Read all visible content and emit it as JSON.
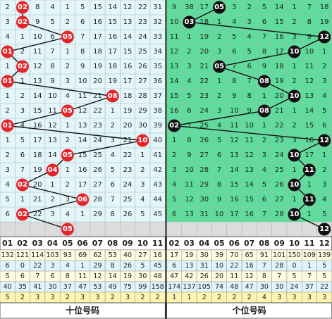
{
  "left": {
    "headers": [
      "01",
      "02",
      "03",
      "04",
      "05",
      "06",
      "07",
      "08",
      "09",
      "10",
      "11"
    ],
    "rows": [
      [
        2,
        "02",
        8,
        4,
        1,
        5,
        15,
        14,
        12,
        22,
        31
      ],
      [
        3,
        "02",
        9,
        5,
        2,
        6,
        16,
        15,
        13,
        23,
        32
      ],
      [
        4,
        1,
        10,
        6,
        "05",
        7,
        17,
        16,
        14,
        24,
        33
      ],
      [
        "01",
        2,
        11,
        7,
        1,
        8,
        18,
        17,
        15,
        25,
        34
      ],
      [
        1,
        "02",
        12,
        8,
        2,
        9,
        19,
        18,
        16,
        26,
        35
      ],
      [
        "01",
        1,
        13,
        9,
        3,
        10,
        20,
        19,
        17,
        27,
        36
      ],
      [
        1,
        2,
        14,
        10,
        4,
        11,
        21,
        "08",
        18,
        28,
        37
      ],
      [
        2,
        3,
        15,
        11,
        "05",
        12,
        22,
        1,
        19,
        29,
        38
      ],
      [
        "01",
        4,
        16,
        12,
        1,
        13,
        23,
        2,
        20,
        30,
        39
      ],
      [
        1,
        5,
        17,
        13,
        2,
        14,
        24,
        3,
        21,
        "10",
        40
      ],
      [
        2,
        6,
        18,
        14,
        "05",
        15,
        25,
        4,
        22,
        1,
        41
      ],
      [
        3,
        7,
        19,
        "04",
        1,
        16,
        26,
        5,
        23,
        2,
        42
      ],
      [
        4,
        "02",
        20,
        1,
        2,
        17,
        27,
        6,
        24,
        3,
        43
      ],
      [
        5,
        1,
        21,
        2,
        3,
        "06",
        28,
        7,
        25,
        4,
        44
      ],
      [
        6,
        "02",
        22,
        3,
        4,
        1,
        29,
        8,
        26,
        5,
        45
      ]
    ],
    "forecast": "05",
    "stats": [
      [
        132,
        121,
        114,
        103,
        93,
        69,
        62,
        53,
        40,
        27,
        16
      ],
      [
        6,
        0,
        22,
        3,
        4,
        1,
        29,
        8,
        26,
        5,
        45
      ],
      [
        5,
        6,
        7,
        6,
        8,
        11,
        12,
        14,
        19,
        30,
        48
      ],
      [
        40,
        35,
        41,
        30,
        37,
        47,
        53,
        49,
        75,
        99,
        158
      ],
      [
        5,
        2,
        3,
        3,
        2,
        3,
        3,
        2,
        3,
        2,
        2
      ]
    ],
    "label": "十位号码"
  },
  "right": {
    "headers": [
      "02",
      "03",
      "04",
      "05",
      "06",
      "07",
      "08",
      "09",
      "10",
      "11",
      "12"
    ],
    "rows": [
      [
        9,
        38,
        17,
        "05",
        3,
        2,
        5,
        14,
        1,
        7,
        18
      ],
      [
        10,
        "03",
        18,
        1,
        4,
        3,
        6,
        15,
        2,
        8,
        19
      ],
      [
        11,
        1,
        19,
        2,
        5,
        4,
        7,
        16,
        3,
        9,
        "12"
      ],
      [
        12,
        2,
        20,
        3,
        6,
        5,
        8,
        17,
        "10",
        10,
        1
      ],
      [
        13,
        3,
        21,
        "05",
        7,
        6,
        9,
        18,
        1,
        11,
        2
      ],
      [
        14,
        4,
        22,
        1,
        8,
        7,
        "08",
        19,
        2,
        12,
        3
      ],
      [
        15,
        5,
        23,
        2,
        9,
        8,
        1,
        20,
        "10",
        13,
        4
      ],
      [
        16,
        6,
        24,
        3,
        10,
        9,
        "08",
        21,
        1,
        14,
        5
      ],
      [
        "02",
        7,
        25,
        4,
        11,
        10,
        1,
        22,
        2,
        15,
        6
      ],
      [
        1,
        8,
        26,
        5,
        12,
        11,
        2,
        23,
        3,
        16,
        "12"
      ],
      [
        2,
        9,
        27,
        6,
        13,
        12,
        3,
        24,
        "10",
        17,
        1
      ],
      [
        3,
        10,
        28,
        7,
        14,
        13,
        4,
        25,
        1,
        "11",
        2
      ],
      [
        4,
        11,
        29,
        8,
        15,
        14,
        5,
        26,
        "10",
        1,
        3
      ],
      [
        5,
        12,
        30,
        9,
        16,
        15,
        6,
        27,
        1,
        "11",
        4
      ],
      [
        6,
        13,
        31,
        10,
        17,
        16,
        7,
        28,
        "10",
        1,
        5
      ]
    ],
    "forecast": "12",
    "stats": [
      [
        17,
        19,
        30,
        39,
        70,
        65,
        91,
        101,
        150,
        109,
        139
      ],
      [
        6,
        13,
        31,
        10,
        22,
        16,
        7,
        28,
        0,
        1,
        5
      ],
      [
        47,
        42,
        26,
        20,
        11,
        12,
        8,
        7,
        5,
        7,
        5
      ],
      [
        174,
        137,
        105,
        74,
        48,
        47,
        30,
        30,
        24,
        37,
        22
      ],
      [
        1,
        1,
        2,
        2,
        2,
        2,
        4,
        3,
        3,
        3,
        3
      ]
    ],
    "label": "个位号码"
  }
}
